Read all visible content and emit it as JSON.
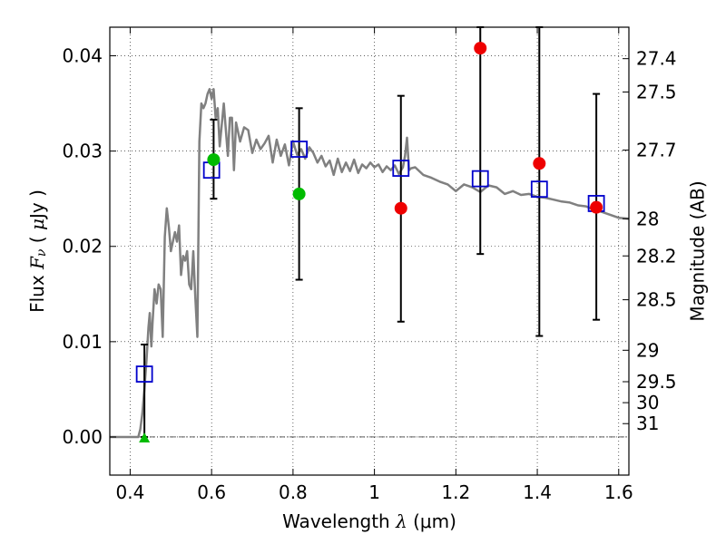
{
  "chart_data": {
    "type": "scatter",
    "xlabel": "Wavelength  λ (μm)",
    "ylabel": "Flux  F_ν  ( μJy )",
    "ylabel_right": "Magnitude (AB)",
    "xlim": [
      0.35,
      1.625
    ],
    "ylim": [
      -0.004,
      0.043
    ],
    "grid": true,
    "x_ticks": [
      0.4,
      0.6,
      0.8,
      1.0,
      1.2,
      1.4,
      1.6
    ],
    "x_tick_labels": [
      "0.4",
      "0.6",
      "0.8",
      "1",
      "1.2",
      "1.4",
      "1.6"
    ],
    "y_ticks": [
      0.0,
      0.01,
      0.02,
      0.03,
      0.04
    ],
    "y_tick_labels": [
      "0.00",
      "0.01",
      "0.02",
      "0.03",
      "0.04"
    ],
    "mag_ticks": [
      {
        "label": "27.4",
        "flux": 0.0397
      },
      {
        "label": "27.5",
        "flux": 0.0362
      },
      {
        "label": "27.7",
        "flux": 0.0301
      },
      {
        "label": "28",
        "flux": 0.0229
      },
      {
        "label": "28.2",
        "flux": 0.019
      },
      {
        "label": "28.5",
        "flux": 0.0144
      },
      {
        "label": "29",
        "flux": 0.0091
      },
      {
        "label": "29.5",
        "flux": 0.0058
      },
      {
        "label": "30",
        "flux": 0.0036
      },
      {
        "label": "31",
        "flux": 0.0014
      }
    ],
    "sed_curve": {
      "color": "#808080",
      "x": [
        0.35,
        0.42,
        0.425,
        0.43,
        0.435,
        0.44,
        0.445,
        0.448,
        0.452,
        0.455,
        0.46,
        0.465,
        0.47,
        0.475,
        0.48,
        0.485,
        0.49,
        0.495,
        0.5,
        0.505,
        0.51,
        0.515,
        0.52,
        0.525,
        0.53,
        0.535,
        0.54,
        0.545,
        0.55,
        0.555,
        0.56,
        0.565,
        0.57,
        0.575,
        0.58,
        0.585,
        0.59,
        0.595,
        0.6,
        0.605,
        0.61,
        0.615,
        0.62,
        0.63,
        0.64,
        0.645,
        0.65,
        0.655,
        0.66,
        0.67,
        0.68,
        0.69,
        0.7,
        0.71,
        0.72,
        0.73,
        0.74,
        0.75,
        0.76,
        0.77,
        0.78,
        0.79,
        0.8,
        0.81,
        0.82,
        0.83,
        0.84,
        0.85,
        0.86,
        0.87,
        0.88,
        0.89,
        0.9,
        0.91,
        0.92,
        0.93,
        0.94,
        0.95,
        0.96,
        0.97,
        0.98,
        0.99,
        1.0,
        1.01,
        1.02,
        1.03,
        1.04,
        1.05,
        1.06,
        1.07,
        1.075,
        1.08,
        1.085,
        1.09,
        1.1,
        1.12,
        1.14,
        1.16,
        1.18,
        1.2,
        1.22,
        1.24,
        1.26,
        1.28,
        1.3,
        1.32,
        1.34,
        1.36,
        1.38,
        1.4,
        1.42,
        1.44,
        1.46,
        1.48,
        1.5,
        1.52,
        1.54,
        1.56,
        1.58,
        1.6,
        1.625
      ],
      "y": [
        0.0,
        0.0,
        0.0008,
        0.0025,
        0.005,
        0.008,
        0.0115,
        0.013,
        0.0095,
        0.012,
        0.0155,
        0.014,
        0.016,
        0.0155,
        0.0105,
        0.021,
        0.024,
        0.022,
        0.0195,
        0.0205,
        0.0215,
        0.0205,
        0.0222,
        0.017,
        0.019,
        0.0185,
        0.0195,
        0.016,
        0.0155,
        0.0195,
        0.0147,
        0.0105,
        0.031,
        0.035,
        0.0345,
        0.035,
        0.036,
        0.0365,
        0.0355,
        0.0365,
        0.0335,
        0.0345,
        0.0305,
        0.035,
        0.0295,
        0.0335,
        0.0335,
        0.028,
        0.033,
        0.031,
        0.0325,
        0.0322,
        0.0298,
        0.0312,
        0.0302,
        0.0308,
        0.0316,
        0.0288,
        0.0312,
        0.0295,
        0.0307,
        0.0285,
        0.031,
        0.0296,
        0.0302,
        0.0292,
        0.0304,
        0.0298,
        0.0288,
        0.0295,
        0.0284,
        0.029,
        0.0275,
        0.0292,
        0.0278,
        0.0288,
        0.0279,
        0.0291,
        0.0277,
        0.0286,
        0.0282,
        0.0288,
        0.0283,
        0.0286,
        0.0278,
        0.0284,
        0.028,
        0.0285,
        0.0276,
        0.0283,
        0.0295,
        0.0314,
        0.028,
        0.0282,
        0.0283,
        0.0275,
        0.0272,
        0.0268,
        0.0265,
        0.0258,
        0.0265,
        0.0262,
        0.0257,
        0.0264,
        0.0262,
        0.0255,
        0.0258,
        0.0254,
        0.0255,
        0.0252,
        0.0251,
        0.0249,
        0.0247,
        0.0246,
        0.0243,
        0.0242,
        0.0238,
        0.0236,
        0.0233,
        0.023,
        0.0229
      ]
    },
    "model_points": {
      "color": "#0000cc",
      "marker": "open-square",
      "x": [
        0.435,
        0.6,
        0.815,
        1.065,
        1.26,
        1.405,
        1.545
      ],
      "y": [
        0.0066,
        0.028,
        0.0302,
        0.0282,
        0.0271,
        0.026,
        0.0245
      ]
    },
    "error_bars": [
      {
        "x": 0.435,
        "low": 0.0,
        "high": 0.0097
      },
      {
        "x": 0.605,
        "low": 0.025,
        "high": 0.0333
      },
      {
        "x": 0.815,
        "low": 0.0165,
        "high": 0.0345
      },
      {
        "x": 1.065,
        "low": 0.0121,
        "high": 0.0358
      },
      {
        "x": 1.26,
        "low": 0.0192,
        "high": 0.043
      },
      {
        "x": 1.405,
        "low": 0.0106,
        "high": 0.043
      },
      {
        "x": 1.545,
        "low": 0.0123,
        "high": 0.036
      }
    ],
    "observed_green": {
      "color": "#00bb00",
      "marker": "circle",
      "x": [
        0.605,
        0.815
      ],
      "y": [
        0.0291,
        0.0255
      ]
    },
    "observed_red": {
      "color": "#ee0000",
      "marker": "circle",
      "x": [
        1.065,
        1.26,
        1.405,
        1.545
      ],
      "y": [
        0.024,
        0.0408,
        0.0287,
        0.0241
      ]
    },
    "upper_limit": {
      "color": "#00bb00",
      "marker": "triangle",
      "x": 0.435,
      "y": 0.0
    }
  }
}
